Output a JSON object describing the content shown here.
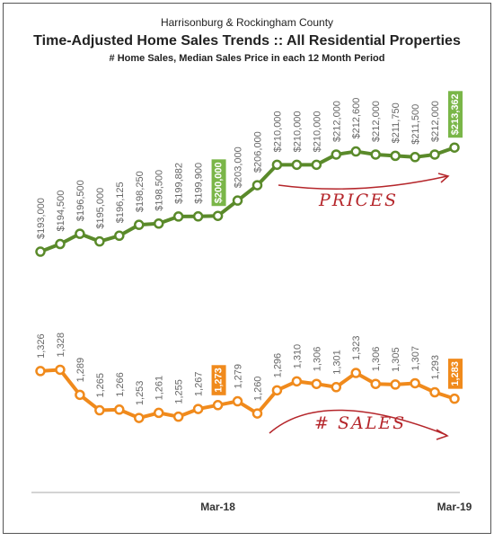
{
  "chart_data": {
    "type": "line",
    "supertitle": "Harrisonburg & Rockingham County",
    "title": "Time-Adjusted Home Sales Trends  ::  All Residential Properties",
    "subtitle": "# Home Sales, Median Sales Price in each 12 Month Period",
    "categories": [
      null,
      null,
      null,
      null,
      null,
      null,
      null,
      null,
      null,
      "Mar-18",
      null,
      null,
      null,
      null,
      null,
      null,
      null,
      null,
      null,
      null,
      null,
      "Mar-19"
    ],
    "ylim": [
      180000,
      225000
    ],
    "y2lim": [
      1200,
      1400
    ],
    "series": [
      {
        "name": "Median Sales Price",
        "color": "#5a8a2a",
        "highlight_color": "#7ab648",
        "values": [
          193000,
          194500,
          196500,
          195000,
          196125,
          198250,
          198500,
          199882,
          199900,
          200000,
          203000,
          206000,
          210000,
          210000,
          210000,
          212000,
          212600,
          212000,
          211750,
          211500,
          212000,
          213362
        ],
        "value_labels": [
          "$193,000",
          "$194,500",
          "$196,500",
          "$195,000",
          "$196,125",
          "$198,250",
          "$198,500",
          "$199,882",
          "$199,900",
          "$200,000",
          "$203,000",
          "$206,000",
          "$210,000",
          "$210,000",
          "$210,000",
          "$212,000",
          "$212,600",
          "$212,000",
          "$211,750",
          "$211,500",
          "$212,000",
          "$213,362"
        ]
      },
      {
        "name": "Home Sales",
        "color": "#f08a1c",
        "highlight_color": "#f08a1c",
        "axis": "y2",
        "values": [
          1326,
          1328,
          1289,
          1265,
          1266,
          1253,
          1261,
          1255,
          1267,
          1273,
          1279,
          1260,
          1296,
          1310,
          1306,
          1301,
          1323,
          1306,
          1305,
          1307,
          1293,
          1283
        ],
        "value_labels": [
          "1,326",
          "1,328",
          "1,289",
          "1,265",
          "1,266",
          "1,253",
          "1,261",
          "1,255",
          "1,267",
          "1,273",
          "1,279",
          "1,260",
          "1,296",
          "1,310",
          "1,306",
          "1,301",
          "1,323",
          "1,306",
          "1,305",
          "1,307",
          "1,293",
          "1,283"
        ]
      }
    ],
    "annotations": [
      "PRICES",
      "# SALES"
    ]
  }
}
